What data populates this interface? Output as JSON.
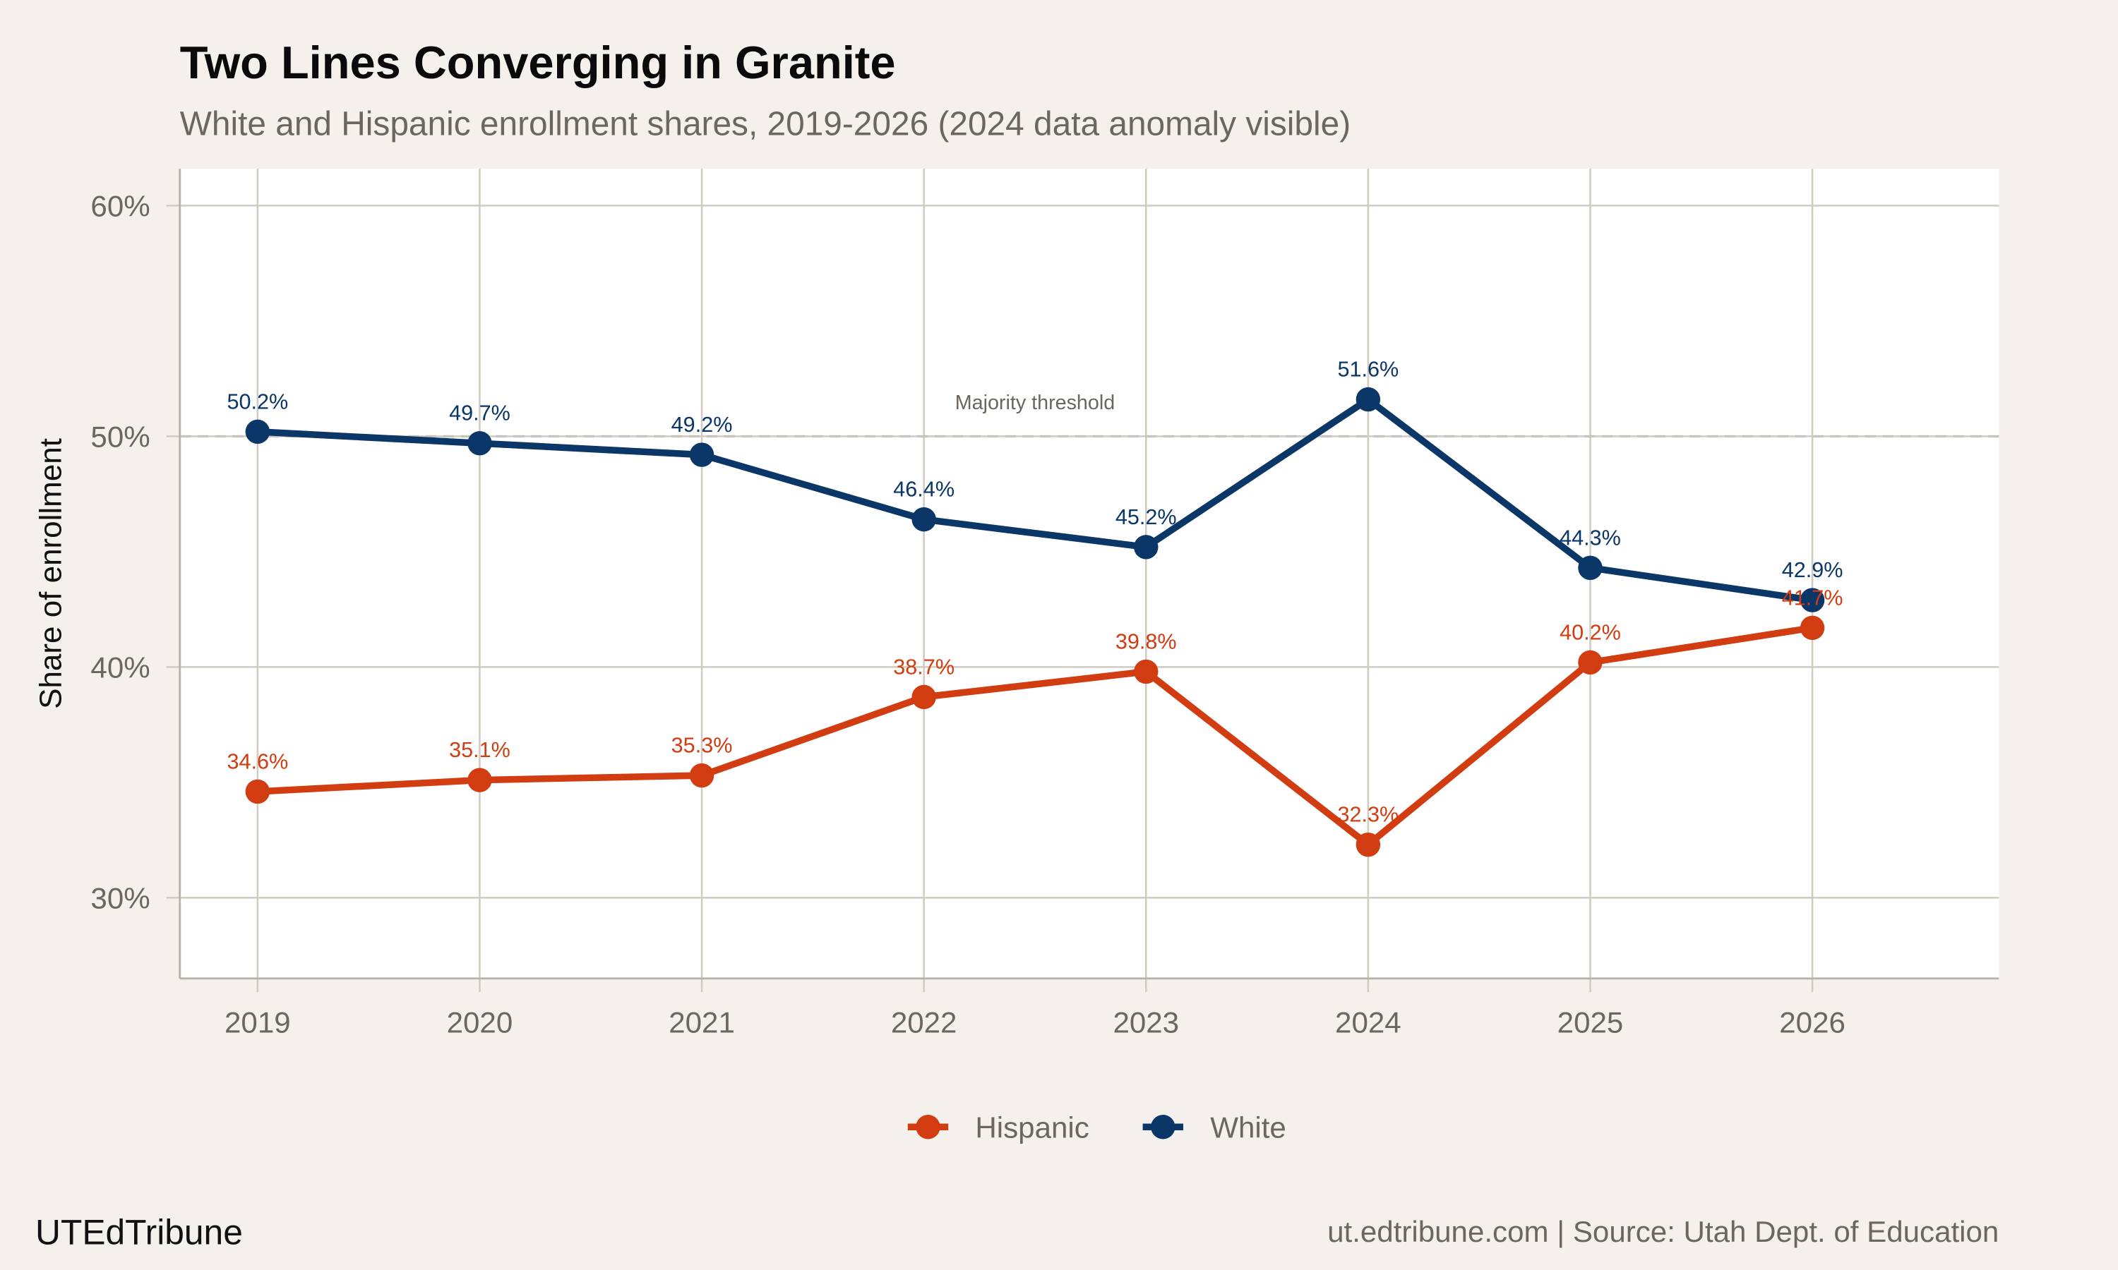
{
  "title": "Two Lines Converging in Granite",
  "subtitle": "White and Hispanic enrollment shares, 2019-2026 (2024 data anomaly visible)",
  "brand": "UTEdTribune",
  "source": "ut.edtribune.com | Source: Utah Dept. of Education",
  "colors": {
    "background": "#f4f1ec",
    "panel": "#ffffff",
    "grid": "#cfcac2",
    "hispanic": "#d13c10",
    "white": "#0a3668"
  },
  "chart_data": {
    "type": "line",
    "title": "Two Lines Converging in Granite",
    "xlabel": "",
    "ylabel": "Share of enrollment",
    "x": [
      2019,
      2020,
      2021,
      2022,
      2023,
      2024,
      2025,
      2026
    ],
    "x_tick_labels": [
      "2019",
      "2020",
      "2021",
      "2022",
      "2023",
      "2024",
      "2025",
      "2026"
    ],
    "y_ticks": [
      30,
      40,
      50,
      60
    ],
    "y_tick_labels": [
      "30%",
      "40%",
      "50%",
      "60%"
    ],
    "xlim": [
      2018.65,
      2026.84
    ],
    "ylim": [
      26.5,
      61.6
    ],
    "grid": true,
    "legend_position": "bottom",
    "series": [
      {
        "name": "Hispanic",
        "color": "#d13c10",
        "values": [
          34.6,
          35.1,
          35.3,
          38.7,
          39.8,
          32.3,
          40.2,
          41.7
        ],
        "labels": [
          "34.6%",
          "35.1%",
          "35.3%",
          "38.7%",
          "39.8%",
          "32.3%",
          "40.2%",
          "41.7%"
        ]
      },
      {
        "name": "White",
        "color": "#0a3668",
        "values": [
          50.2,
          49.7,
          49.2,
          46.4,
          45.2,
          51.6,
          44.3,
          42.9
        ],
        "labels": [
          "50.2%",
          "49.7%",
          "49.2%",
          "46.4%",
          "45.2%",
          "51.6%",
          "44.3%",
          "42.9%"
        ]
      }
    ],
    "reference_line": {
      "value": 50,
      "label": "Majority threshold"
    }
  }
}
